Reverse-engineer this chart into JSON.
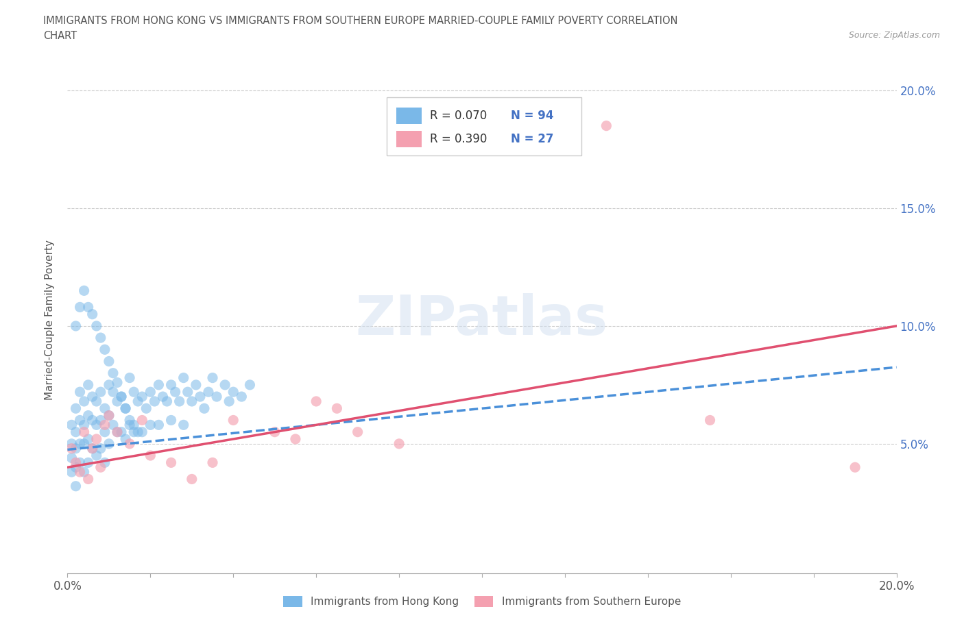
{
  "title_line1": "IMMIGRANTS FROM HONG KONG VS IMMIGRANTS FROM SOUTHERN EUROPE MARRIED-COUPLE FAMILY POVERTY CORRELATION",
  "title_line2": "CHART",
  "source": "Source: ZipAtlas.com",
  "ylabel": "Married-Couple Family Poverty",
  "xlim": [
    0.0,
    0.2
  ],
  "ylim": [
    -0.005,
    0.21
  ],
  "hk_color": "#7ab8e8",
  "se_color": "#f4a0b0",
  "hk_line_color": "#4a90d9",
  "se_line_color": "#e05070",
  "grid_color": "#cccccc",
  "title_color": "#555555",
  "ytick_color": "#4472c4",
  "legend_text_color": "#333333",
  "legend_n_color": "#4472c4",
  "watermark_color": "#d0dff0",
  "hk_R": "0.070",
  "hk_N": "94",
  "se_R": "0.390",
  "se_N": "27",
  "watermark": "ZIPatlas",
  "hk_line_x": [
    0.0,
    0.2
  ],
  "hk_line_y": [
    0.0475,
    0.0825
  ],
  "se_line_x": [
    0.0,
    0.2
  ],
  "se_line_y": [
    0.04,
    0.1
  ],
  "hk_x": [
    0.001,
    0.001,
    0.001,
    0.001,
    0.002,
    0.002,
    0.002,
    0.002,
    0.002,
    0.003,
    0.003,
    0.003,
    0.003,
    0.004,
    0.004,
    0.004,
    0.004,
    0.005,
    0.005,
    0.005,
    0.005,
    0.006,
    0.006,
    0.006,
    0.007,
    0.007,
    0.007,
    0.008,
    0.008,
    0.008,
    0.009,
    0.009,
    0.009,
    0.01,
    0.01,
    0.01,
    0.011,
    0.011,
    0.012,
    0.012,
    0.013,
    0.013,
    0.014,
    0.014,
    0.015,
    0.015,
    0.016,
    0.016,
    0.017,
    0.017,
    0.018,
    0.018,
    0.019,
    0.02,
    0.02,
    0.021,
    0.022,
    0.022,
    0.023,
    0.024,
    0.025,
    0.025,
    0.026,
    0.027,
    0.028,
    0.028,
    0.029,
    0.03,
    0.031,
    0.032,
    0.033,
    0.034,
    0.035,
    0.036,
    0.038,
    0.039,
    0.04,
    0.042,
    0.044,
    0.002,
    0.003,
    0.004,
    0.005,
    0.006,
    0.007,
    0.008,
    0.009,
    0.01,
    0.011,
    0.012,
    0.013,
    0.014,
    0.015,
    0.016
  ],
  "hk_y": [
    0.058,
    0.05,
    0.044,
    0.038,
    0.065,
    0.055,
    0.048,
    0.04,
    0.032,
    0.072,
    0.06,
    0.05,
    0.042,
    0.068,
    0.058,
    0.05,
    0.038,
    0.075,
    0.062,
    0.052,
    0.042,
    0.07,
    0.06,
    0.048,
    0.068,
    0.058,
    0.045,
    0.072,
    0.06,
    0.048,
    0.065,
    0.055,
    0.042,
    0.075,
    0.062,
    0.05,
    0.072,
    0.058,
    0.068,
    0.055,
    0.07,
    0.055,
    0.065,
    0.052,
    0.078,
    0.058,
    0.072,
    0.058,
    0.068,
    0.055,
    0.07,
    0.055,
    0.065,
    0.072,
    0.058,
    0.068,
    0.075,
    0.058,
    0.07,
    0.068,
    0.075,
    0.06,
    0.072,
    0.068,
    0.078,
    0.058,
    0.072,
    0.068,
    0.075,
    0.07,
    0.065,
    0.072,
    0.078,
    0.07,
    0.075,
    0.068,
    0.072,
    0.07,
    0.075,
    0.1,
    0.108,
    0.115,
    0.108,
    0.105,
    0.1,
    0.095,
    0.09,
    0.085,
    0.08,
    0.076,
    0.07,
    0.065,
    0.06,
    0.055
  ],
  "se_x": [
    0.001,
    0.002,
    0.003,
    0.004,
    0.005,
    0.006,
    0.007,
    0.008,
    0.009,
    0.01,
    0.012,
    0.015,
    0.018,
    0.02,
    0.025,
    0.03,
    0.035,
    0.04,
    0.05,
    0.055,
    0.06,
    0.065,
    0.07,
    0.08,
    0.13,
    0.155,
    0.19
  ],
  "se_y": [
    0.048,
    0.042,
    0.038,
    0.055,
    0.035,
    0.048,
    0.052,
    0.04,
    0.058,
    0.062,
    0.055,
    0.05,
    0.06,
    0.045,
    0.042,
    0.035,
    0.042,
    0.06,
    0.055,
    0.052,
    0.068,
    0.065,
    0.055,
    0.05,
    0.185,
    0.06,
    0.04
  ]
}
